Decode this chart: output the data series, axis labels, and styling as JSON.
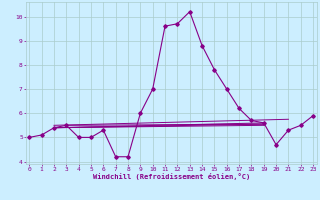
{
  "xlabel": "Windchill (Refroidissement éolien,°C)",
  "bg_color": "#cceeff",
  "grid_color": "#aacccc",
  "line_color": "#880088",
  "x_values": [
    0,
    1,
    2,
    3,
    4,
    5,
    6,
    7,
    8,
    9,
    10,
    11,
    12,
    13,
    14,
    15,
    16,
    17,
    18,
    19,
    20,
    21,
    22,
    23
  ],
  "main_y": [
    5.0,
    5.1,
    5.4,
    5.5,
    5.0,
    5.0,
    5.3,
    4.2,
    4.2,
    6.0,
    7.0,
    9.6,
    9.7,
    10.2,
    8.8,
    7.8,
    7.0,
    6.2,
    5.7,
    5.6,
    4.7,
    5.3,
    5.5,
    5.9
  ],
  "flat_lines": [
    {
      "x_start": 2,
      "x_end": 19,
      "y_start": 5.4,
      "y_end": 5.5
    },
    {
      "x_start": 2,
      "x_end": 19,
      "y_start": 5.4,
      "y_end": 5.55
    },
    {
      "x_start": 2,
      "x_end": 19,
      "y_start": 5.4,
      "y_end": 5.6
    },
    {
      "x_start": 3,
      "x_end": 19,
      "y_start": 5.5,
      "y_end": 5.55
    },
    {
      "x_start": 2,
      "x_end": 21,
      "y_start": 5.5,
      "y_end": 5.75
    }
  ],
  "ylim": [
    3.9,
    10.6
  ],
  "xlim": [
    -0.3,
    23.3
  ],
  "yticks": [
    4,
    5,
    6,
    7,
    8,
    9,
    10
  ],
  "xticks": [
    0,
    1,
    2,
    3,
    4,
    5,
    6,
    7,
    8,
    9,
    10,
    11,
    12,
    13,
    14,
    15,
    16,
    17,
    18,
    19,
    20,
    21,
    22,
    23
  ]
}
